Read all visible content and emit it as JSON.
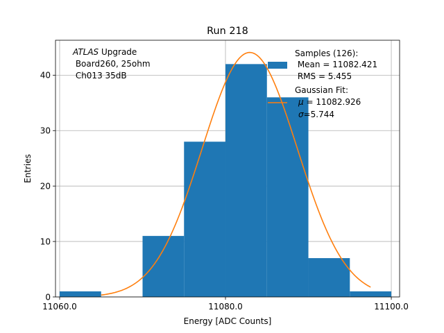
{
  "chart_data": {
    "type": "bar",
    "title": "Run 218",
    "xlabel": "Energy [ADC Counts]",
    "ylabel": "Entries",
    "xlim": [
      11059.5,
      11101.0
    ],
    "ylim": [
      0,
      46.3
    ],
    "grid": true,
    "x_ticks": [
      11060.0,
      11080.0,
      11100.0
    ],
    "x_tick_labels": [
      "11060.0",
      "11080.0",
      "11100.0"
    ],
    "y_ticks": [
      0,
      10,
      20,
      30,
      40
    ],
    "y_tick_labels": [
      "0",
      "10",
      "20",
      "30",
      "40"
    ],
    "bins": [
      {
        "x0": 11060.0,
        "x1": 11065.0,
        "count": 1
      },
      {
        "x0": 11065.0,
        "x1": 11070.0,
        "count": 0
      },
      {
        "x0": 11070.0,
        "x1": 11075.0,
        "count": 11
      },
      {
        "x0": 11075.0,
        "x1": 11080.0,
        "count": 28
      },
      {
        "x0": 11080.0,
        "x1": 11085.0,
        "count": 42
      },
      {
        "x0": 11085.0,
        "x1": 11090.0,
        "count": 36
      },
      {
        "x0": 11090.0,
        "x1": 11095.0,
        "count": 7
      },
      {
        "x0": 11095.0,
        "x1": 11100.0,
        "count": 1
      }
    ],
    "fit": {
      "mu": 11082.926,
      "sigma": 5.744,
      "amplitude": 44.1,
      "x_range": [
        11065.0,
        11097.5
      ]
    },
    "colors": {
      "bars": "#1f77b4",
      "fit": "#ff7f0e",
      "grid": "#b0b0b0"
    },
    "annotation": {
      "italic": "ATLAS",
      "line1_rest": " Upgrade",
      "line2": " Board260, 25ohm",
      "line3": " Ch013 35dB"
    },
    "legend": {
      "position": "top-right",
      "samples_line1": "Samples (126):",
      "samples_line2": " Mean = 11082.421",
      "samples_line3": " RMS = 5.455",
      "fit_line1": "Gaussian Fit:",
      "fit_mu_symbol": "μ",
      "fit_mu_rest": " = 11082.926",
      "fit_sigma_symbol": "σ",
      "fit_sigma_rest": "=5.744"
    }
  }
}
